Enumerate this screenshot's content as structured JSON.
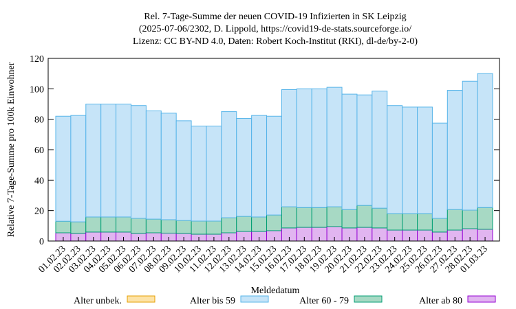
{
  "chart_data": {
    "type": "stacked_bar",
    "title": "Rel. 7-Tage-Summe der neuen COVID-19 Infizierten in SK Leipzig",
    "subtitle": [
      "(2025-07-06/2302, D. Lippold, https://covid19-de-stats.sourceforge.io/",
      "Lizenz: CC BY-ND 4.0, Daten: Robert Koch-Institut (RKI), dl-de/by-2-0)"
    ],
    "y_label": "Relative 7-Tage-Summe pro 100k Einwohner",
    "x_label": "Meldedatum",
    "categories": [
      "01.02.23",
      "02.02.23",
      "03.02.23",
      "04.02.23",
      "05.02.23",
      "06.02.23",
      "07.02.23",
      "08.02.23",
      "09.02.23",
      "10.02.23",
      "11.02.23",
      "12.02.23",
      "13.02.23",
      "14.02.23",
      "15.02.23",
      "16.02.23",
      "17.02.23",
      "18.02.23",
      "19.02.23",
      "20.02.23",
      "21.02.23",
      "22.02.23",
      "23.02.23",
      "24.02.23",
      "25.02.23",
      "26.02.23",
      "27.02.23",
      "28.02.23",
      "01.03.23"
    ],
    "series": [
      {
        "name": "Alter unbek.",
        "color": "#fde3a7",
        "stroke": "#e69f00",
        "values": [
          0,
          0,
          0,
          0,
          0,
          0,
          0,
          0,
          0,
          0,
          0,
          0,
          0,
          0,
          0,
          0,
          0,
          0,
          0,
          0,
          0,
          0,
          0,
          0,
          0,
          0,
          0,
          0,
          0
        ]
      },
      {
        "name": "Alter bis 59",
        "color": "#c6e4f8",
        "stroke": "#56b4e9",
        "values": [
          69,
          69.9,
          74.2,
          74.2,
          74.2,
          74.1,
          71.1,
          70,
          65.5,
          62.4,
          62.4,
          69.7,
          64.3,
          66.7,
          64.9,
          77,
          78,
          78,
          78.5,
          75.8,
          72.6,
          76.9,
          71,
          70,
          70,
          62.6,
          78.3,
          84.7,
          88
        ]
      },
      {
        "name": "Alter 60 - 79",
        "color": "#a7d9c4",
        "stroke": "#009e73",
        "values": [
          7.6,
          7.6,
          9.9,
          9.9,
          9.9,
          9.9,
          9,
          8.8,
          8.5,
          8.6,
          8.6,
          9.9,
          9.9,
          9.5,
          10.3,
          13.9,
          13,
          13,
          13,
          12.1,
          14.4,
          13,
          10.8,
          10.8,
          10.8,
          9,
          13.5,
          12.2,
          14.3
        ]
      },
      {
        "name": "Alter ab 80",
        "color": "#e1b5f0",
        "stroke": "#9400d3",
        "values": [
          5.4,
          5,
          5.9,
          5.9,
          5.9,
          5,
          5.4,
          5.2,
          5,
          4.5,
          4.5,
          5.4,
          6.3,
          6.3,
          6.8,
          8.6,
          9,
          9,
          9.5,
          8.6,
          9,
          8.6,
          7.2,
          7.2,
          7.2,
          5.9,
          7.2,
          8.1,
          7.7
        ]
      }
    ],
    "ylim": [
      0,
      120
    ],
    "yticks": [
      0,
      20,
      40,
      60,
      80,
      100,
      120
    ],
    "legend": "bottom"
  }
}
